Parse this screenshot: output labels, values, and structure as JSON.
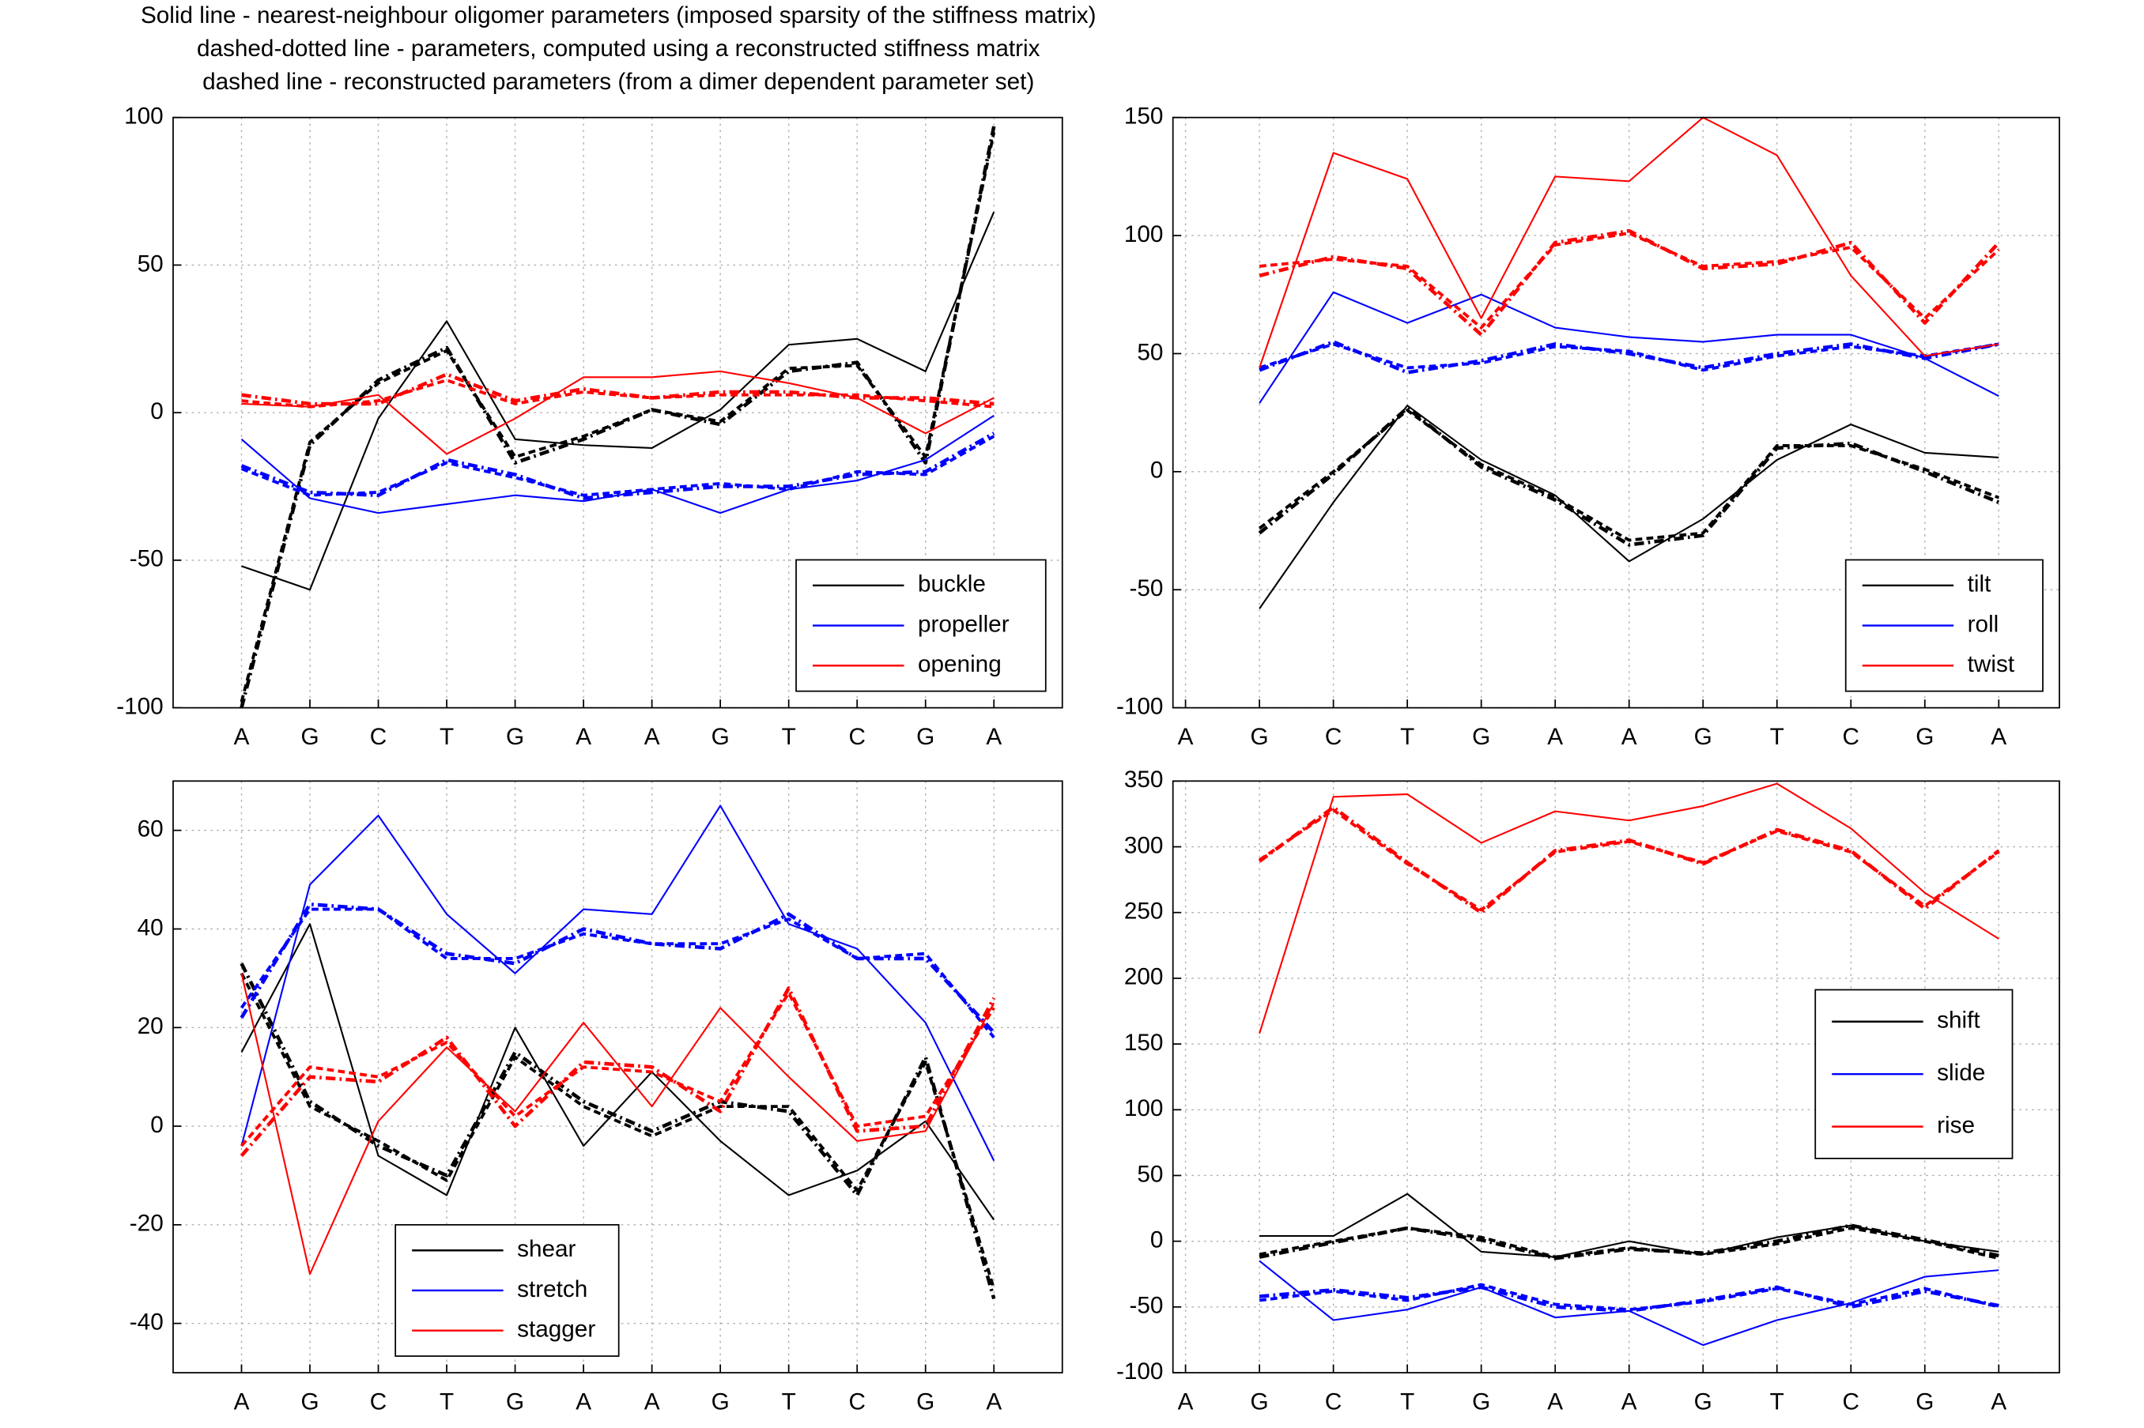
{
  "header": {
    "lines": [
      "Solid line - nearest-neighbour oligomer parameters (imposed sparsity of the stiffness matrix)",
      "dashed-dotted line - parameters, computed using a reconstructed stiffness matrix",
      "dashed line - reconstructed parameters (from a dimer dependent parameter set)"
    ]
  },
  "chart_data": [
    {
      "type": "line",
      "x": [
        1,
        2,
        3,
        4,
        5,
        6,
        7,
        8,
        9,
        10,
        11,
        12
      ],
      "xlim": [
        0,
        13
      ],
      "xticks": [
        {
          "value": 1,
          "label": "A"
        },
        {
          "value": 2,
          "label": "G"
        },
        {
          "value": 3,
          "label": "C"
        },
        {
          "value": 4,
          "label": "T"
        },
        {
          "value": 5,
          "label": "G"
        },
        {
          "value": 6,
          "label": "A"
        },
        {
          "value": 7,
          "label": "A"
        },
        {
          "value": 8,
          "label": "G"
        },
        {
          "value": 9,
          "label": "T"
        },
        {
          "value": 10,
          "label": "C"
        },
        {
          "value": 11,
          "label": "G"
        },
        {
          "value": 12,
          "label": "A"
        }
      ],
      "ylim": [
        -100,
        100
      ],
      "yticks": [
        -100,
        -50,
        0,
        50,
        100
      ],
      "grid": true,
      "legend": "lower right",
      "series": [
        {
          "name": "buckle",
          "color": "#000000",
          "values": [
            -52,
            -60,
            -2,
            31,
            -9,
            -11,
            -12,
            1,
            23,
            25,
            14,
            68
          ],
          "dashdot_values": [
            -100,
            -11,
            11,
            22,
            -17,
            -9,
            1,
            -4,
            14,
            17,
            -17,
            97
          ],
          "dashed_values": [
            -98,
            -10,
            10,
            21,
            -15,
            -8,
            1,
            -3,
            15,
            16,
            -15,
            95
          ]
        },
        {
          "name": "propeller",
          "color": "#0000ff",
          "values": [
            -9,
            -29,
            -34,
            -31,
            -28,
            -30,
            -26,
            -34,
            -26,
            -23,
            -16,
            -1
          ],
          "dashdot_values": [
            -18,
            -27,
            -28,
            -16,
            -21,
            -29,
            -27,
            -25,
            -25,
            -21,
            -20,
            -7
          ],
          "dashed_values": [
            -19,
            -28,
            -27,
            -17,
            -22,
            -28,
            -26,
            -24,
            -26,
            -20,
            -21,
            -8
          ]
        },
        {
          "name": "opening",
          "color": "#ff0000",
          "values": [
            3,
            2,
            6,
            -14,
            -2,
            12,
            12,
            14,
            10,
            5,
            -7,
            5
          ],
          "dashdot_values": [
            6,
            3,
            3,
            13,
            4,
            8,
            5,
            7,
            7,
            5,
            5,
            3
          ],
          "dashed_values": [
            4,
            2,
            4,
            11,
            3,
            7,
            5,
            6,
            6,
            6,
            4,
            2
          ]
        }
      ]
    },
    {
      "type": "line",
      "x": [
        1,
        2,
        3,
        4,
        5,
        6,
        7,
        8,
        9,
        10,
        11,
        12
      ],
      "xlim": [
        0.83,
        12.82
      ],
      "xticks": [
        {
          "value": 1,
          "label": "A"
        },
        {
          "value": 2,
          "label": "G"
        },
        {
          "value": 3,
          "label": "C"
        },
        {
          "value": 4,
          "label": "T"
        },
        {
          "value": 5,
          "label": "G"
        },
        {
          "value": 6,
          "label": "A"
        },
        {
          "value": 7,
          "label": "A"
        },
        {
          "value": 8,
          "label": "G"
        },
        {
          "value": 9,
          "label": "T"
        },
        {
          "value": 10,
          "label": "C"
        },
        {
          "value": 11,
          "label": "G"
        },
        {
          "value": 12,
          "label": "A"
        }
      ],
      "ylim": [
        -100,
        150
      ],
      "yticks": [
        -100,
        -50,
        0,
        50,
        100,
        150
      ],
      "grid": true,
      "legend": "lower right",
      "series": [
        {
          "name": "tilt",
          "color": "#000000",
          "values": [
            null,
            -58,
            -13,
            28,
            5,
            -10,
            -38,
            -20,
            5,
            20,
            8,
            6
          ],
          "dashdot_values": [
            null,
            -26,
            -1,
            27,
            2,
            -12,
            -31,
            -27,
            10,
            12,
            0,
            -13
          ],
          "dashed_values": [
            null,
            -24,
            0,
            26,
            3,
            -11,
            -29,
            -26,
            11,
            11,
            1,
            -11
          ]
        },
        {
          "name": "roll",
          "color": "#0000ff",
          "values": [
            null,
            29,
            76,
            63,
            75,
            61,
            57,
            55,
            58,
            58,
            48,
            32
          ],
          "dashdot_values": [
            null,
            43,
            55,
            42,
            47,
            54,
            50,
            44,
            50,
            54,
            48,
            54
          ],
          "dashed_values": [
            null,
            44,
            54,
            44,
            46,
            53,
            51,
            43,
            49,
            53,
            49,
            54
          ]
        },
        {
          "name": "twist",
          "color": "#ff0000",
          "values": [
            null,
            44,
            135,
            124,
            65,
            125,
            123,
            150,
            134,
            83,
            49,
            54
          ],
          "dashdot_values": [
            null,
            83,
            91,
            86,
            58,
            97,
            102,
            86,
            88,
            97,
            63,
            97
          ],
          "dashed_values": [
            null,
            87,
            90,
            87,
            61,
            96,
            101,
            87,
            89,
            95,
            65,
            94
          ]
        }
      ]
    },
    {
      "type": "line",
      "x": [
        1,
        2,
        3,
        4,
        5,
        6,
        7,
        8,
        9,
        10,
        11,
        12
      ],
      "xlim": [
        0,
        13
      ],
      "xticks": [
        {
          "value": 1,
          "label": "A"
        },
        {
          "value": 2,
          "label": "G"
        },
        {
          "value": 3,
          "label": "C"
        },
        {
          "value": 4,
          "label": "T"
        },
        {
          "value": 5,
          "label": "G"
        },
        {
          "value": 6,
          "label": "A"
        },
        {
          "value": 7,
          "label": "A"
        },
        {
          "value": 8,
          "label": "G"
        },
        {
          "value": 9,
          "label": "T"
        },
        {
          "value": 10,
          "label": "C"
        },
        {
          "value": 11,
          "label": "G"
        },
        {
          "value": 12,
          "label": "A"
        }
      ],
      "ylim": [
        -50,
        70
      ],
      "yticks": [
        -40,
        -20,
        0,
        20,
        40,
        60
      ],
      "grid": true,
      "legend": "lower center",
      "series": [
        {
          "name": "shear",
          "color": "#000000",
          "values": [
            15,
            41,
            -6,
            -14,
            20,
            -4,
            11,
            -3,
            -14,
            -9,
            1,
            -19
          ],
          "dashdot_values": [
            33,
            5,
            -4,
            -10,
            15,
            5,
            -1,
            5,
            3,
            -14,
            14,
            -35
          ],
          "dashed_values": [
            31,
            4,
            -3,
            -11,
            14,
            4,
            -2,
            4,
            4,
            -13,
            13,
            -33
          ]
        },
        {
          "name": "stretch",
          "color": "#0000ff",
          "values": [
            -4,
            49,
            63,
            43,
            31,
            44,
            43,
            65,
            41,
            36,
            21,
            -7
          ],
          "dashdot_values": [
            22,
            45,
            44,
            35,
            33,
            40,
            37,
            36,
            43,
            34,
            34,
            19
          ],
          "dashed_values": [
            24,
            44,
            44,
            34,
            34,
            39,
            37,
            37,
            42,
            34,
            35,
            18
          ]
        },
        {
          "name": "stagger",
          "color": "#ff0000",
          "values": [
            31,
            -30,
            1,
            16,
            3,
            21,
            4,
            24,
            10,
            -3,
            -1,
            25
          ],
          "dashdot_values": [
            -6,
            10,
            9,
            18,
            0,
            13,
            12,
            3,
            28,
            -1,
            0,
            26
          ],
          "dashed_values": [
            -4,
            12,
            10,
            17,
            2,
            12,
            11,
            5,
            27,
            0,
            2,
            24
          ]
        }
      ]
    },
    {
      "type": "line",
      "x": [
        1,
        2,
        3,
        4,
        5,
        6,
        7,
        8,
        9,
        10,
        11,
        12
      ],
      "xlim": [
        0.83,
        12.82
      ],
      "xticks": [
        {
          "value": 1,
          "label": "A"
        },
        {
          "value": 2,
          "label": "G"
        },
        {
          "value": 3,
          "label": "C"
        },
        {
          "value": 4,
          "label": "T"
        },
        {
          "value": 5,
          "label": "G"
        },
        {
          "value": 6,
          "label": "A"
        },
        {
          "value": 7,
          "label": "A"
        },
        {
          "value": 8,
          "label": "G"
        },
        {
          "value": 9,
          "label": "T"
        },
        {
          "value": 10,
          "label": "C"
        },
        {
          "value": 11,
          "label": "G"
        },
        {
          "value": 12,
          "label": "A"
        }
      ],
      "ylim": [
        -100,
        350
      ],
      "yticks": [
        -100,
        -50,
        0,
        50,
        100,
        150,
        200,
        250,
        300,
        350
      ],
      "grid": true,
      "legend": "center right",
      "series": [
        {
          "name": "shift",
          "color": "#000000",
          "values": [
            null,
            4,
            4,
            36,
            -8,
            -12,
            0,
            -10,
            3,
            12,
            0,
            -8
          ],
          "dashdot_values": [
            null,
            -12,
            -1,
            10,
            1,
            -13,
            -6,
            -9,
            0,
            12,
            1,
            -11
          ],
          "dashed_values": [
            null,
            -10,
            0,
            10,
            3,
            -12,
            -5,
            -10,
            -2,
            10,
            0,
            -13
          ]
        },
        {
          "name": "slide",
          "color": "#0000ff",
          "values": [
            null,
            -15,
            -60,
            -52,
            -35,
            -58,
            -53,
            -79,
            -60,
            -47,
            -27,
            -22
          ],
          "dashdot_values": [
            null,
            -42,
            -37,
            -43,
            -35,
            -50,
            -53,
            -45,
            -35,
            -50,
            -38,
            -49
          ],
          "dashed_values": [
            null,
            -45,
            -38,
            -45,
            -33,
            -48,
            -52,
            -46,
            -36,
            -48,
            -36,
            -50
          ]
        },
        {
          "name": "rise",
          "color": "#ff0000",
          "values": [
            null,
            158,
            338,
            340,
            303,
            327,
            320,
            331,
            348,
            314,
            265,
            230
          ],
          "dashdot_values": [
            null,
            289,
            330,
            288,
            250,
            297,
            305,
            287,
            313,
            297,
            253,
            297
          ],
          "dashed_values": [
            null,
            290,
            328,
            287,
            252,
            296,
            304,
            288,
            312,
            296,
            255,
            296
          ]
        }
      ]
    }
  ]
}
